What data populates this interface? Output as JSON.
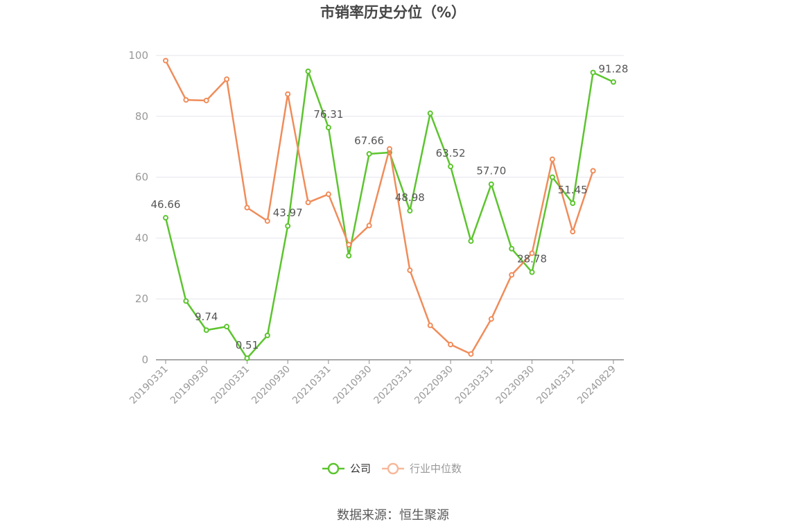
{
  "title": "市销率历史分位（%）",
  "source": "数据来源：恒生聚源",
  "colors": {
    "company": "#5cc42e",
    "industry": "#f08c5a",
    "axis": "#8c8c8c",
    "grid": "#e6e6ee",
    "label": "#555555",
    "tick": "#999999"
  },
  "chart_data": {
    "type": "line",
    "title": "市销率历史分位（%）",
    "xlabel": "",
    "ylabel": "",
    "ylim": [
      0,
      100
    ],
    "yticks": [
      0,
      20,
      40,
      60,
      80,
      100
    ],
    "grid": true,
    "legend_position": "bottom",
    "x_tick_labels": [
      "20190331",
      "20190930",
      "20200331",
      "20200930",
      "20210331",
      "20210930",
      "20220331",
      "20220930",
      "20230331",
      "20230930",
      "20240331",
      "20240829"
    ],
    "categories": [
      "20190331",
      "20190630",
      "20190930",
      "20191231",
      "20200331",
      "20200630",
      "20200930",
      "20201231",
      "20210331",
      "20210630",
      "20210930",
      "20211231",
      "20220331",
      "20220630",
      "20220930",
      "20221231",
      "20230331",
      "20230630",
      "20230930",
      "20231231",
      "20240331",
      "20240630",
      "20240829"
    ],
    "series": [
      {
        "name": "公司",
        "values": [
          46.66,
          19.3,
          9.74,
          10.9,
          0.51,
          8.0,
          43.97,
          94.8,
          76.31,
          34.2,
          67.66,
          68.1,
          48.98,
          81.0,
          63.52,
          39.0,
          57.7,
          36.5,
          28.78,
          60.0,
          51.45,
          94.4,
          91.28
        ],
        "labels": [
          "46.66",
          "",
          "9.74",
          "",
          "0.51",
          "",
          "43.97",
          "",
          "76.31",
          "",
          "67.66",
          "",
          "48.98",
          "",
          "63.52",
          "",
          "57.70",
          "",
          "28.78",
          "",
          "51.45",
          "",
          "91.28"
        ]
      },
      {
        "name": "行业中位数",
        "values": [
          98.3,
          85.4,
          85.2,
          92.2,
          50.0,
          45.6,
          87.3,
          51.7,
          54.4,
          37.8,
          44.1,
          69.3,
          29.4,
          11.3,
          5.0,
          1.9,
          13.4,
          27.9,
          35.0,
          65.9,
          42.1,
          62.1,
          null
        ]
      }
    ]
  }
}
